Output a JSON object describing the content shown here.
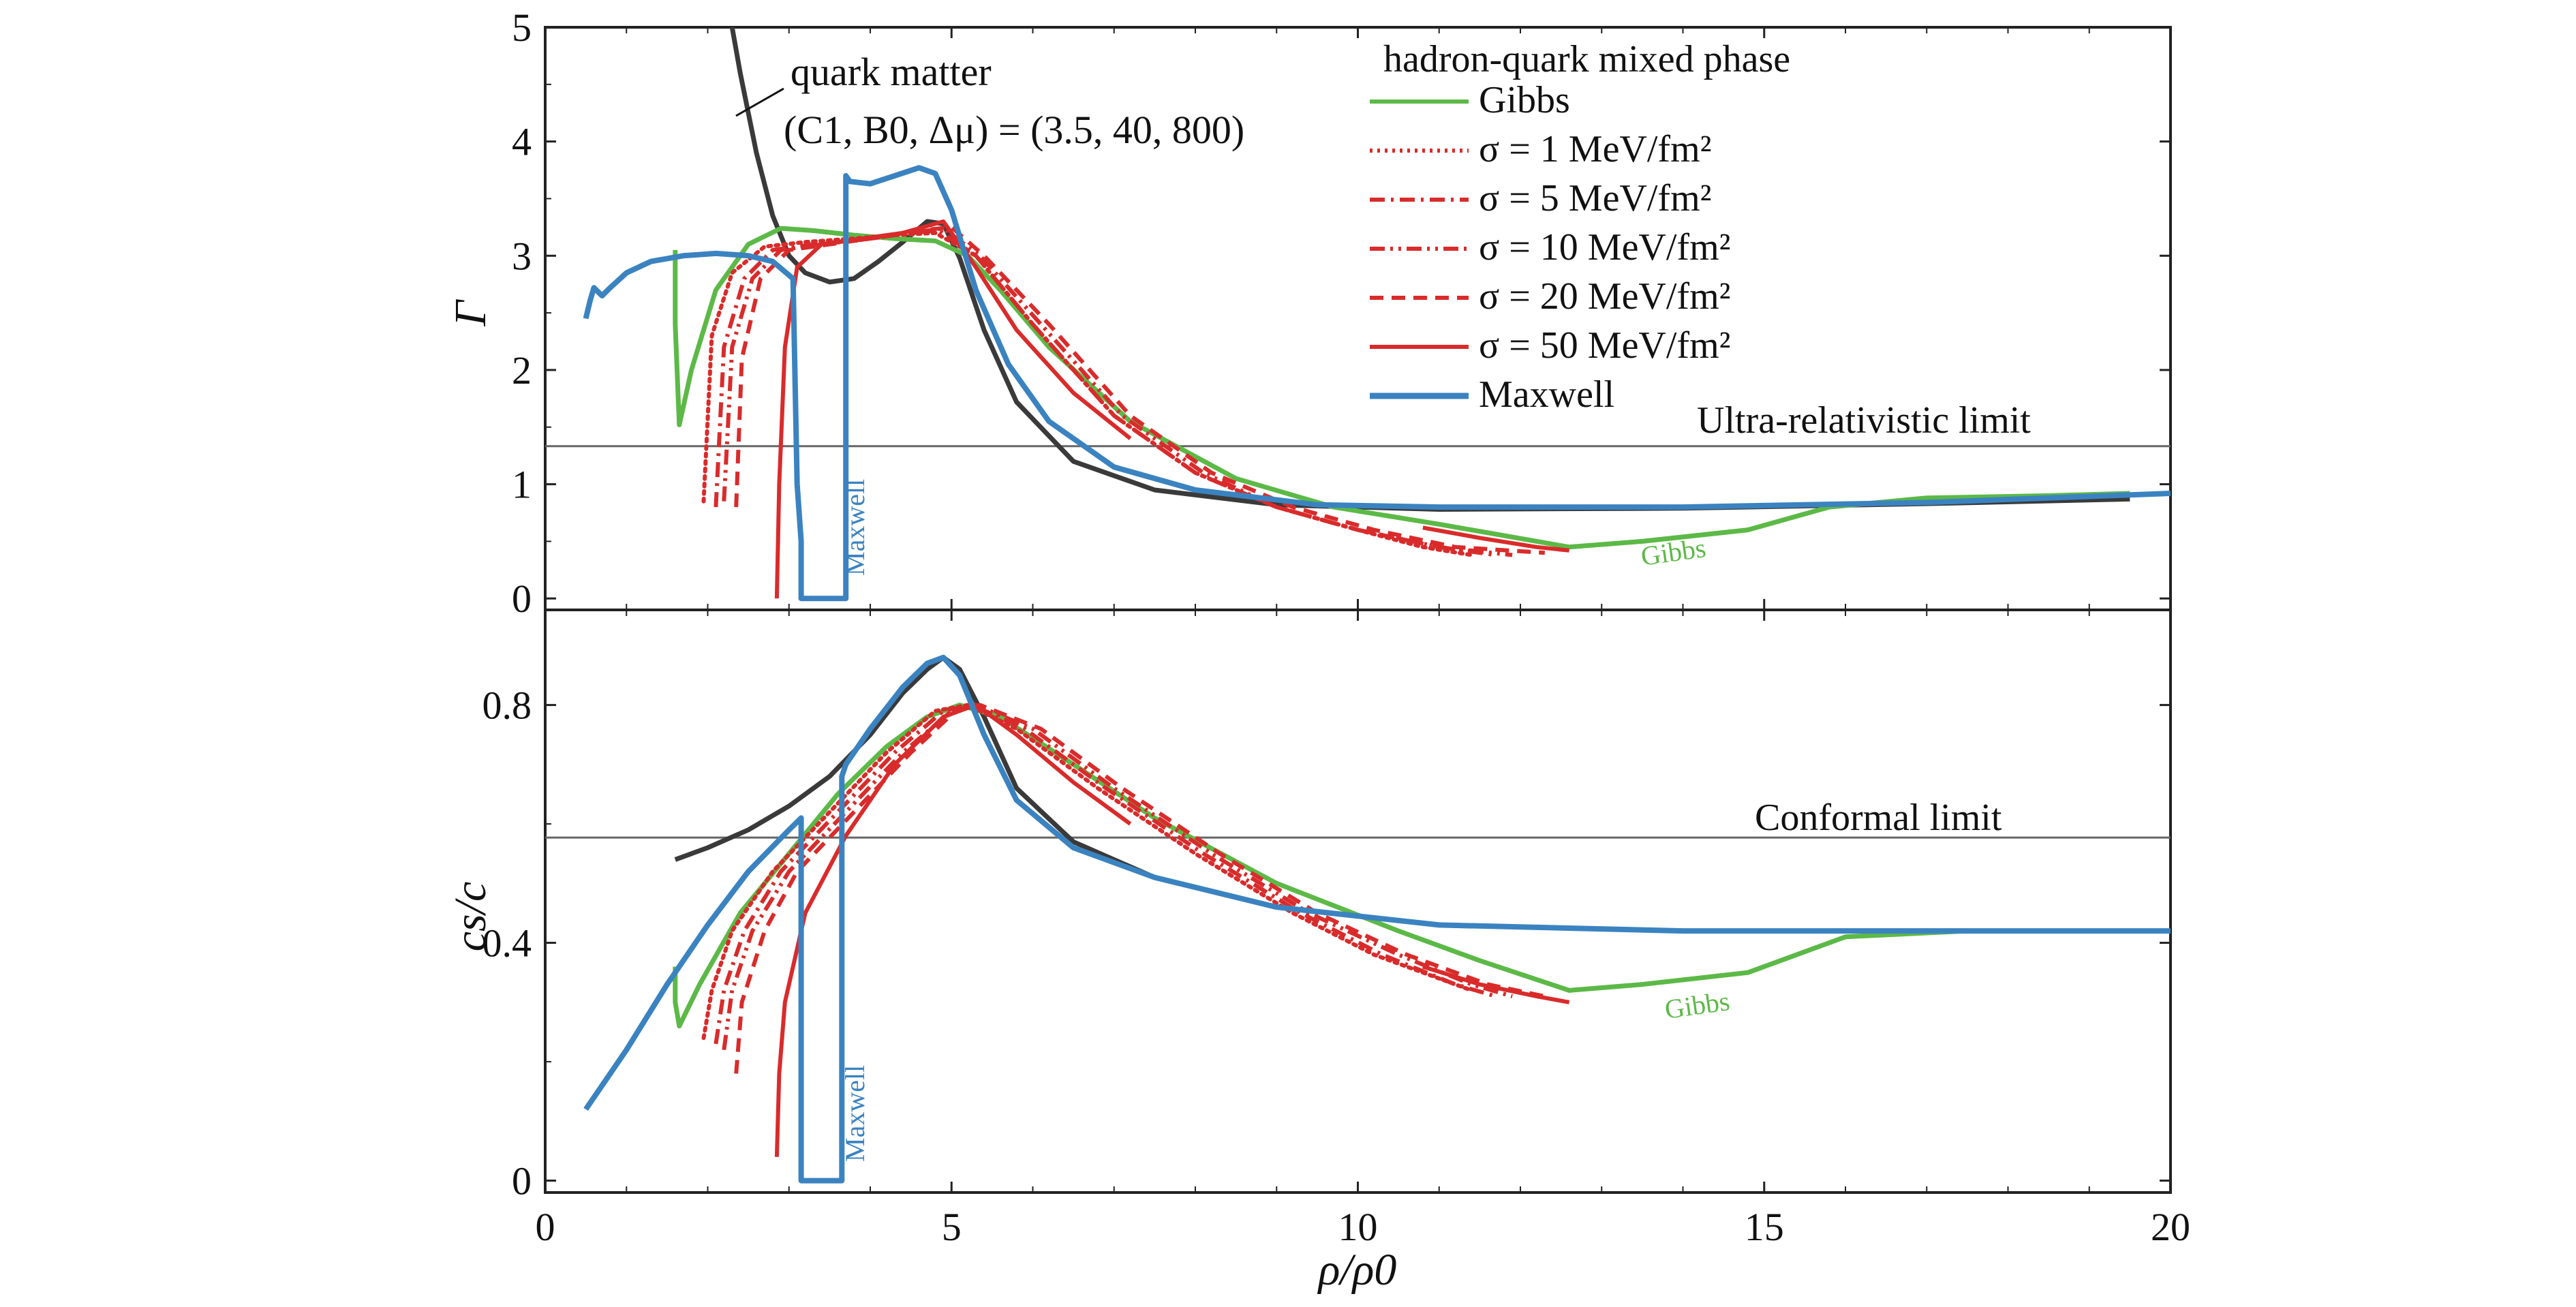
{
  "colors": {
    "gibbs": "#5cb947",
    "maxwell": "#3b83c0",
    "quark": "#3a3a3a",
    "surface_tension": "#d92b2b",
    "limit_line": "#666666",
    "axes": "#222222"
  },
  "chart_data": [
    {
      "type": "line",
      "panel": "top",
      "ylabel": "Γ",
      "xlabel": "",
      "xlim": [
        0,
        20
      ],
      "ylim": [
        -0.1,
        5
      ],
      "yticks": [
        "0",
        "1",
        "2",
        "3",
        "4",
        "5"
      ],
      "reference_lines": [
        {
          "y": 1.333,
          "label": "Ultra-relativistic limit"
        }
      ],
      "annotations": [
        {
          "text": "quark matter",
          "x": 3.0,
          "y": 4.55
        },
        {
          "text": "(C1, B0, Δμ) = (3.5, 40, 800)",
          "x": 3.0,
          "y": 4.05
        },
        {
          "text": "Maxwell",
          "x": 3.9,
          "y": 0.55,
          "rotated": true
        },
        {
          "text": "Gibbs",
          "x": 13.6,
          "y": 0.32,
          "rotated": true
        }
      ],
      "series": [
        {
          "name": "quark matter",
          "color_key": "quark",
          "style": "solid",
          "x": [
            2.3,
            2.4,
            2.6,
            2.8,
            3.0,
            3.2,
            3.5,
            3.8,
            4.1,
            4.4,
            4.7,
            4.9,
            5.1,
            5.4,
            5.8,
            6.5,
            7.5,
            9.0,
            11,
            14,
            17,
            19.5
          ],
          "y": [
            5.0,
            4.6,
            3.9,
            3.35,
            3.0,
            2.85,
            2.77,
            2.8,
            2.95,
            3.12,
            3.3,
            3.28,
            2.98,
            2.35,
            1.72,
            1.2,
            0.95,
            0.82,
            0.78,
            0.79,
            0.83,
            0.87
          ]
        },
        {
          "name": "Gibbs",
          "color_key": "gibbs",
          "style": "solid",
          "x": [
            1.6,
            1.6,
            1.65,
            1.8,
            2.1,
            2.5,
            2.9,
            3.3,
            3.8,
            4.3,
            4.8,
            5.2,
            5.6,
            6.2,
            7.2,
            8.5,
            9.7,
            11,
            12.6,
            13.5,
            14.8,
            15.8,
            17,
            18.5,
            19.5
          ],
          "y": [
            3.05,
            2.4,
            1.52,
            2.0,
            2.7,
            3.1,
            3.24,
            3.22,
            3.18,
            3.15,
            3.13,
            3.0,
            2.7,
            2.2,
            1.55,
            1.05,
            0.8,
            0.65,
            0.45,
            0.5,
            0.6,
            0.8,
            0.88,
            0.9,
            0.92
          ]
        },
        {
          "name": "σ = 1 MeV/fm²",
          "color_key": "surface_tension",
          "style": "dotted",
          "x": [
            1.95,
            2.05,
            2.3,
            2.7,
            3.2,
            3.8,
            4.3,
            4.8,
            5.3,
            6.0,
            7.0,
            8.0,
            9.0,
            10.0,
            10.8,
            11.4
          ],
          "y": [
            0.85,
            2.3,
            2.85,
            3.08,
            3.12,
            3.15,
            3.18,
            3.2,
            3.0,
            2.4,
            1.6,
            1.1,
            0.8,
            0.6,
            0.45,
            0.38
          ]
        },
        {
          "name": "σ = 5 MeV/fm²",
          "color_key": "surface_tension",
          "style": "dashdot",
          "x": [
            2.1,
            2.2,
            2.45,
            2.8,
            3.3,
            3.9,
            4.4,
            4.85,
            5.3,
            6.0,
            7.0,
            8.0,
            9.0,
            10.0,
            11.0,
            11.7
          ],
          "y": [
            0.8,
            2.2,
            2.8,
            3.05,
            3.1,
            3.14,
            3.2,
            3.22,
            3.0,
            2.4,
            1.6,
            1.1,
            0.8,
            0.6,
            0.45,
            0.38
          ]
        },
        {
          "name": "σ = 10 MeV/fm²",
          "color_key": "surface_tension",
          "style": "dashdotdot",
          "x": [
            2.2,
            2.3,
            2.55,
            2.9,
            3.4,
            4.0,
            4.5,
            4.9,
            5.35,
            6.1,
            7.1,
            8.1,
            9.0,
            10.0,
            11.0,
            11.9
          ],
          "y": [
            0.85,
            2.2,
            2.8,
            3.05,
            3.1,
            3.15,
            3.2,
            3.24,
            3.0,
            2.4,
            1.6,
            1.1,
            0.8,
            0.6,
            0.45,
            0.38
          ]
        },
        {
          "name": "σ = 20 MeV/fm²",
          "color_key": "surface_tension",
          "style": "dashed",
          "x": [
            2.35,
            2.42,
            2.65,
            3.0,
            3.5,
            4.1,
            4.6,
            5.0,
            5.4,
            6.2,
            7.2,
            8.2,
            9.2,
            10.2,
            11.2,
            12.3
          ],
          "y": [
            0.8,
            2.1,
            2.8,
            3.05,
            3.1,
            3.16,
            3.22,
            3.25,
            3.0,
            2.4,
            1.6,
            1.1,
            0.8,
            0.6,
            0.45,
            0.4
          ]
        },
        {
          "name": "σ = 50 MeV/fm²",
          "color_key": "surface_tension",
          "style": "solid",
          "x": [
            2.85,
            2.88,
            2.95,
            3.1,
            3.4,
            3.9,
            4.4,
            4.9,
            5.3,
            5.8,
            6.5,
            7.2
          ],
          "y": [
            0.0,
            1.0,
            2.2,
            2.9,
            3.1,
            3.15,
            3.2,
            3.3,
            2.9,
            2.35,
            1.8,
            1.4
          ]
        },
        {
          "name": "σ = 50 MeV/fm² (high density)",
          "color_key": "surface_tension",
          "style": "solid",
          "x": [
            10.8,
            11.5,
            12.2,
            12.6
          ],
          "y": [
            0.62,
            0.53,
            0.45,
            0.42
          ]
        },
        {
          "name": "Maxwell",
          "color_key": "maxwell",
          "style": "solid",
          "x": [
            0.5,
            0.55,
            0.6,
            0.7,
            0.8,
            1.0,
            1.3,
            1.7,
            2.1,
            2.5,
            2.8,
            3.05,
            3.1,
            3.15,
            3.15,
            3.7,
            3.7,
            3.75,
            4.0,
            4.3,
            4.6,
            4.8,
            5.0,
            5.3,
            5.7,
            6.2,
            7.0,
            8.0,
            9.5,
            11,
            14,
            17,
            20
          ],
          "y": [
            2.45,
            2.6,
            2.72,
            2.65,
            2.72,
            2.85,
            2.95,
            3.0,
            3.02,
            3.0,
            2.95,
            2.8,
            1.0,
            0.5,
            0.0,
            0.0,
            3.7,
            3.65,
            3.63,
            3.7,
            3.77,
            3.72,
            3.4,
            2.7,
            2.05,
            1.55,
            1.15,
            0.95,
            0.82,
            0.8,
            0.8,
            0.84,
            0.92
          ]
        }
      ]
    },
    {
      "type": "line",
      "panel": "bottom",
      "ylabel": "cs/c",
      "xlabel": "ρ/ρ0",
      "xlim": [
        0,
        20
      ],
      "ylim": [
        -0.02,
        0.96
      ],
      "xticks": [
        "0",
        "5",
        "10",
        "15",
        "20"
      ],
      "yticks": [
        "0",
        "0.4",
        "0.8"
      ],
      "reference_lines": [
        {
          "y": 0.577,
          "label": "Conformal limit"
        }
      ],
      "annotations": [
        {
          "text": "Maxwell",
          "x": 3.9,
          "y": 0.09,
          "rotated": true
        },
        {
          "text": "Gibbs",
          "x": 14.0,
          "y": 0.3,
          "rotated": true
        }
      ],
      "series": [
        {
          "name": "quark matter",
          "color_key": "quark",
          "style": "solid",
          "x": [
            1.6,
            2.0,
            2.5,
            3.0,
            3.5,
            4.0,
            4.4,
            4.7,
            4.9,
            5.1,
            5.4,
            5.8,
            6.5,
            7.5,
            9.0,
            11,
            14,
            17,
            20
          ],
          "y": [
            0.54,
            0.56,
            0.59,
            0.63,
            0.68,
            0.75,
            0.82,
            0.86,
            0.88,
            0.86,
            0.78,
            0.66,
            0.57,
            0.51,
            0.46,
            0.43,
            0.42,
            0.42,
            0.42
          ]
        },
        {
          "name": "Gibbs",
          "color_key": "gibbs",
          "style": "solid",
          "x": [
            1.6,
            1.6,
            1.65,
            1.9,
            2.4,
            3.0,
            3.6,
            4.2,
            4.7,
            5.1,
            5.6,
            6.5,
            7.5,
            9.0,
            10.5,
            11.5,
            12.6,
            13.5,
            14.8,
            16.0,
            17.5,
            20
          ],
          "y": [
            0.36,
            0.3,
            0.26,
            0.33,
            0.45,
            0.55,
            0.65,
            0.73,
            0.78,
            0.8,
            0.78,
            0.7,
            0.61,
            0.5,
            0.42,
            0.37,
            0.32,
            0.33,
            0.35,
            0.41,
            0.42,
            0.42
          ]
        },
        {
          "name": "σ = 1 MeV/fm²",
          "color_key": "surface_tension",
          "style": "dotted",
          "x": [
            1.95,
            2.05,
            2.3,
            2.8,
            3.5,
            4.2,
            4.8,
            5.2,
            5.8,
            6.8,
            8.0,
            9.2,
            10.2,
            11.0,
            11.4
          ],
          "y": [
            0.24,
            0.32,
            0.42,
            0.52,
            0.62,
            0.72,
            0.79,
            0.8,
            0.76,
            0.66,
            0.55,
            0.45,
            0.38,
            0.34,
            0.32
          ]
        },
        {
          "name": "σ = 5 MeV/fm²",
          "color_key": "surface_tension",
          "style": "dashdot",
          "x": [
            2.1,
            2.2,
            2.45,
            2.9,
            3.6,
            4.3,
            4.9,
            5.25,
            5.9,
            6.9,
            8.1,
            9.3,
            10.3,
            11.2,
            11.7
          ],
          "y": [
            0.23,
            0.32,
            0.42,
            0.52,
            0.62,
            0.72,
            0.79,
            0.8,
            0.76,
            0.66,
            0.55,
            0.45,
            0.38,
            0.33,
            0.31
          ]
        },
        {
          "name": "σ = 10 MeV/fm²",
          "color_key": "surface_tension",
          "style": "dashdotdot",
          "x": [
            2.2,
            2.3,
            2.55,
            3.0,
            3.7,
            4.4,
            5.0,
            5.3,
            6.0,
            7.0,
            8.2,
            9.4,
            10.5,
            11.4,
            11.9
          ],
          "y": [
            0.22,
            0.32,
            0.42,
            0.52,
            0.62,
            0.72,
            0.79,
            0.8,
            0.76,
            0.66,
            0.55,
            0.45,
            0.38,
            0.33,
            0.31
          ]
        },
        {
          "name": "σ = 20 MeV/fm²",
          "color_key": "surface_tension",
          "style": "dashed",
          "x": [
            2.35,
            2.42,
            2.7,
            3.1,
            3.8,
            4.5,
            5.05,
            5.35,
            6.1,
            7.1,
            8.3,
            9.5,
            10.6,
            11.6,
            12.3
          ],
          "y": [
            0.18,
            0.3,
            0.42,
            0.52,
            0.62,
            0.72,
            0.79,
            0.8,
            0.76,
            0.66,
            0.55,
            0.45,
            0.38,
            0.33,
            0.31
          ]
        },
        {
          "name": "σ = 50 MeV/fm²",
          "color_key": "surface_tension",
          "style": "solid",
          "x": [
            2.85,
            2.88,
            2.95,
            3.2,
            3.7,
            4.3,
            4.9,
            5.3,
            5.8,
            6.5,
            7.2
          ],
          "y": [
            0.04,
            0.18,
            0.3,
            0.45,
            0.58,
            0.7,
            0.78,
            0.8,
            0.75,
            0.67,
            0.6
          ]
        },
        {
          "name": "σ = 50 MeV/fm² (high density)",
          "color_key": "surface_tension",
          "style": "solid",
          "x": [
            10.8,
            11.5,
            12.2,
            12.6
          ],
          "y": [
            0.36,
            0.33,
            0.31,
            0.3
          ]
        },
        {
          "name": "Maxwell",
          "color_key": "maxwell",
          "style": "solid",
          "x": [
            0.5,
            1.0,
            1.5,
            2.0,
            2.5,
            3.0,
            3.15,
            3.15,
            3.2,
            3.65,
            3.65,
            3.7,
            4.0,
            4.4,
            4.7,
            4.9,
            5.1,
            5.4,
            5.8,
            6.5,
            7.5,
            9.0,
            11,
            14,
            17,
            20
          ],
          "y": [
            0.12,
            0.22,
            0.33,
            0.43,
            0.52,
            0.59,
            0.61,
            0.0,
            0.0,
            0.0,
            0.68,
            0.7,
            0.76,
            0.83,
            0.87,
            0.88,
            0.85,
            0.75,
            0.64,
            0.56,
            0.51,
            0.46,
            0.43,
            0.42,
            0.42,
            0.42
          ]
        }
      ]
    }
  ],
  "legend": {
    "title": "hadron-quark mixed phase",
    "items": [
      {
        "label": "Gibbs",
        "color_key": "gibbs",
        "style": "solid"
      },
      {
        "label": "σ = 1 MeV/fm²",
        "color_key": "surface_tension",
        "style": "dotted"
      },
      {
        "label": "σ = 5 MeV/fm²",
        "color_key": "surface_tension",
        "style": "dashdot"
      },
      {
        "label": "σ = 10 MeV/fm²",
        "color_key": "surface_tension",
        "style": "dashdotdot"
      },
      {
        "label": "σ = 20 MeV/fm²",
        "color_key": "surface_tension",
        "style": "dashed"
      },
      {
        "label": "σ = 50 MeV/fm²",
        "color_key": "surface_tension",
        "style": "solid"
      },
      {
        "label": "Maxwell",
        "color_key": "maxwell",
        "style": "solid"
      }
    ]
  }
}
